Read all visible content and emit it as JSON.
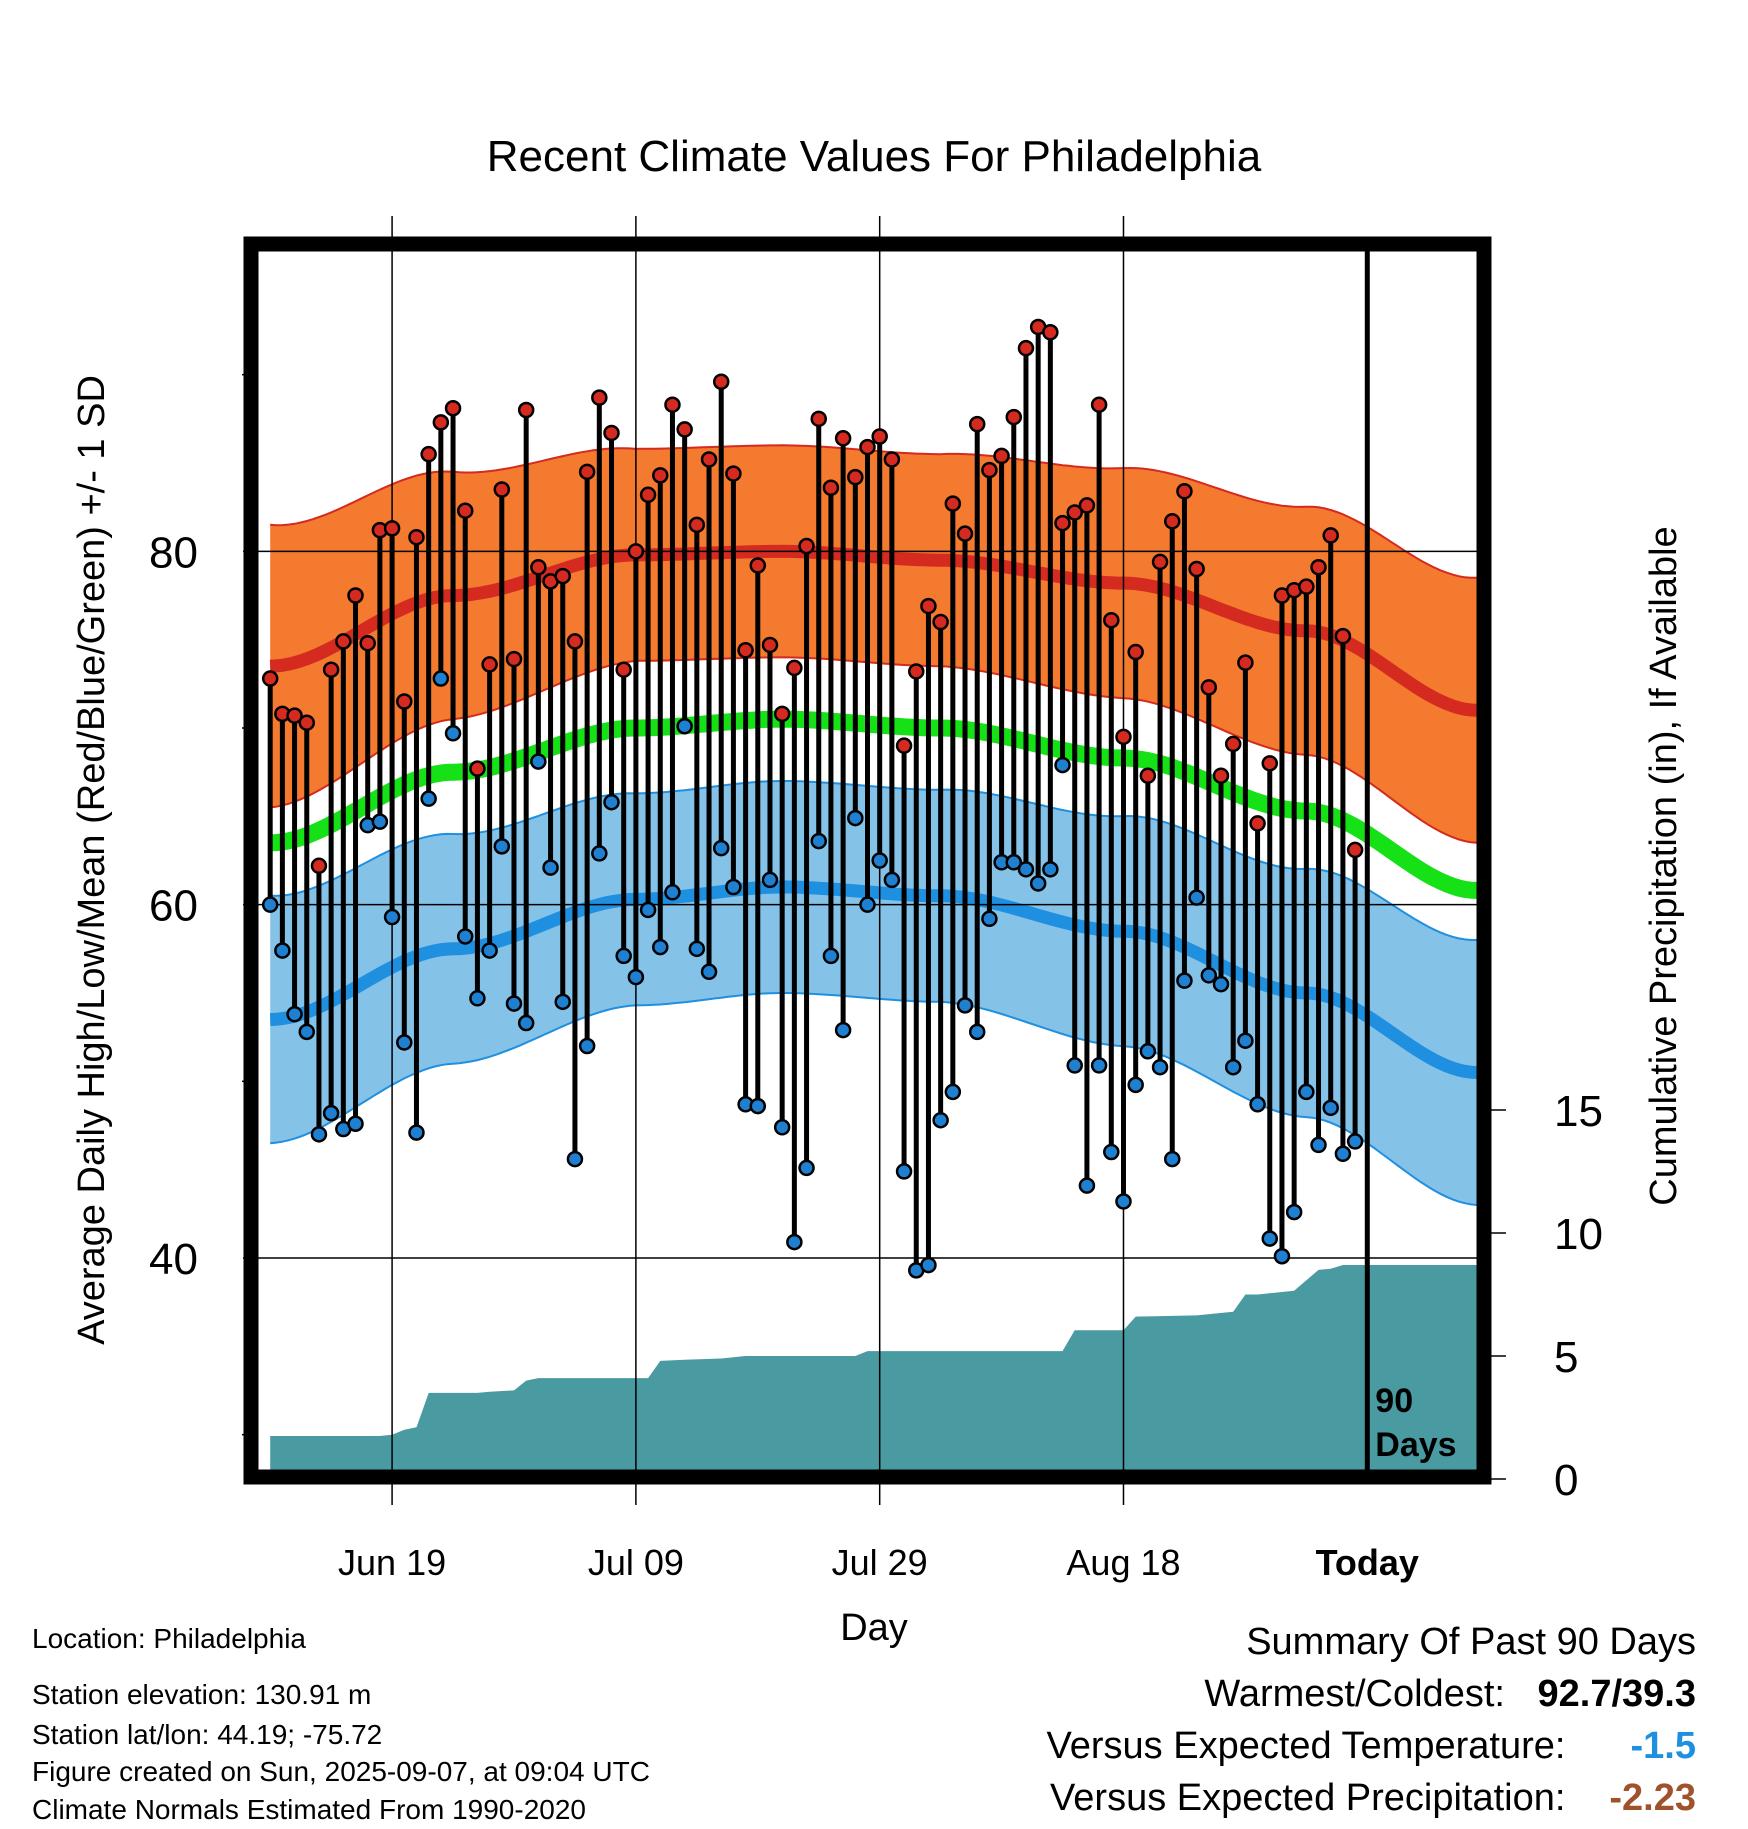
{
  "title": "Recent Climate Values For Philadelphia",
  "info": {
    "location": "Location: Philadelphia",
    "elevation": "Station elevation: 130.91 m",
    "latlon": "Station lat/lon: 44.19; -75.72",
    "created": "Figure created on Sun, 2025-09-07, at 09:04 UTC",
    "normals": "Climate Normals Estimated From 1990-2020"
  },
  "summary": {
    "heading": "Summary Of Past 90 Days",
    "warmest_coldest_label": "Warmest/Coldest:",
    "warmest_coldest_value": "92.7/39.3",
    "temp_label": "Versus Expected Temperature:",
    "temp_value": "-1.5",
    "temp_color": "#1f8fe0",
    "precip_label": "Versus Expected Precipitation:",
    "precip_value": "-2.23",
    "precip_color": "#a0522d"
  },
  "chart_data": {
    "type": "line",
    "title": "Recent Climate Values For Philadelphia",
    "xlabel": "Day",
    "ylabel_left": "Average Daily High/Low/Mean (Red/Blue/Green) +/- 1 SD",
    "ylabel_right": "Cumulative Precipitation (in), If Available",
    "x_ticks": [
      {
        "day": 10,
        "label": "Jun 19"
      },
      {
        "day": 30,
        "label": "Jul 09"
      },
      {
        "day": 50,
        "label": "Jul 29"
      },
      {
        "day": 70,
        "label": "Aug 18"
      },
      {
        "day": 90,
        "label": "Today"
      }
    ],
    "xlim": [
      -1,
      99
    ],
    "ylim_left": [
      28,
      97
    ],
    "ylim_right": [
      0,
      15
    ],
    "yticks_left": [
      40,
      60,
      80
    ],
    "yticks_right": [
      0,
      5,
      10,
      15
    ],
    "today_marker": {
      "day": 90,
      "label_line1": "90",
      "label_line2": "Days"
    },
    "colors": {
      "high_band": "#f37a2f",
      "high_edge": "#d42a1f",
      "high_mean": "#d42a1f",
      "low_band": "#85c2e8",
      "low_edge": "#1f8fe0",
      "low_mean": "#1f8fe0",
      "mean_line": "#16e016",
      "precip": "#4a9aa2",
      "high_dot": "#d42a1f",
      "low_dot": "#1f7fd0"
    },
    "normal_high": {
      "knots": [
        [
          0,
          73.5
        ],
        [
          15,
          77.5
        ],
        [
          30,
          79.8
        ],
        [
          42,
          80.0
        ],
        [
          55,
          79.5
        ],
        [
          70,
          78.2
        ],
        [
          85,
          75.5
        ],
        [
          99,
          71.0
        ]
      ],
      "sd": [
        [
          0,
          8.0
        ],
        [
          30,
          6.0
        ],
        [
          55,
          6.0
        ],
        [
          99,
          7.5
        ]
      ]
    },
    "normal_low": {
      "knots": [
        [
          0,
          53.5
        ],
        [
          15,
          57.5
        ],
        [
          30,
          60.3
        ],
        [
          42,
          61.0
        ],
        [
          55,
          60.5
        ],
        [
          70,
          58.5
        ],
        [
          85,
          55.0
        ],
        [
          99,
          50.5
        ]
      ],
      "sd": [
        [
          0,
          7.0
        ],
        [
          30,
          6.0
        ],
        [
          55,
          6.0
        ],
        [
          99,
          7.5
        ]
      ]
    },
    "normal_mean": {
      "knots": [
        [
          0,
          63.5
        ],
        [
          15,
          67.5
        ],
        [
          30,
          70.0
        ],
        [
          42,
          70.5
        ],
        [
          55,
          70.0
        ],
        [
          70,
          68.3
        ],
        [
          85,
          65.3
        ],
        [
          99,
          60.8
        ]
      ]
    },
    "highs": [
      72.8,
      70.8,
      70.7,
      70.3,
      62.2,
      73.3,
      74.9,
      77.5,
      74.8,
      81.2,
      81.3,
      71.5,
      80.8,
      85.5,
      87.3,
      88.1,
      82.3,
      67.7,
      73.6,
      83.5,
      73.9,
      88.0,
      79.1,
      78.3,
      78.6,
      74.9,
      84.5,
      88.7,
      86.7,
      73.3,
      80.0,
      83.2,
      84.3,
      88.3,
      86.9,
      81.5,
      85.2,
      89.6,
      84.4,
      74.4,
      79.2,
      74.7,
      70.8,
      73.4,
      80.3,
      87.5,
      83.6,
      86.4,
      84.2,
      85.9,
      86.5,
      85.2,
      69.0,
      73.2,
      76.9,
      76.0,
      82.7,
      81.0,
      87.2,
      84.6,
      85.4,
      87.6,
      91.5,
      92.7,
      92.4,
      81.6,
      82.2,
      82.6,
      88.3,
      76.1,
      69.5,
      74.3,
      67.3,
      79.4,
      81.7,
      83.4,
      79.0,
      72.3,
      67.3,
      69.1,
      73.7,
      64.6,
      68.0,
      77.5,
      77.8,
      78.0,
      79.1,
      80.9,
      75.2,
      63.1
    ],
    "lows": [
      60.0,
      57.4,
      53.8,
      52.8,
      47.0,
      48.2,
      47.3,
      47.6,
      64.5,
      64.7,
      59.3,
      52.2,
      47.1,
      66.0,
      72.8,
      69.7,
      58.2,
      54.7,
      57.4,
      63.3,
      54.4,
      53.3,
      68.1,
      62.1,
      54.5,
      45.6,
      52.0,
      62.9,
      65.8,
      57.1,
      55.9,
      59.7,
      57.6,
      60.7,
      70.1,
      57.5,
      56.2,
      63.2,
      61.0,
      48.7,
      48.6,
      61.4,
      47.4,
      40.9,
      45.1,
      63.6,
      57.1,
      52.9,
      64.9,
      60.0,
      62.5,
      61.4,
      44.9,
      39.3,
      39.6,
      47.8,
      49.4,
      54.3,
      52.8,
      59.2,
      62.4,
      62.4,
      62.0,
      61.2,
      62.0,
      67.9,
      50.9,
      44.1,
      50.9,
      46.0,
      43.2,
      49.8,
      51.7,
      50.8,
      45.6,
      55.7,
      60.4,
      56.0,
      55.5,
      50.8,
      52.3,
      48.7,
      41.1,
      40.1,
      42.6,
      49.4,
      46.4,
      48.5,
      45.9,
      46.6
    ],
    "precip_cumulative": [
      [
        0,
        1.75
      ],
      [
        9,
        1.75
      ],
      [
        10,
        1.8
      ],
      [
        11,
        2.0
      ],
      [
        12,
        2.1
      ],
      [
        13,
        3.5
      ],
      [
        17,
        3.5
      ],
      [
        18,
        3.55
      ],
      [
        20,
        3.6
      ],
      [
        21,
        4.0
      ],
      [
        22,
        4.1
      ],
      [
        31,
        4.1
      ],
      [
        32,
        4.8
      ],
      [
        34,
        4.85
      ],
      [
        37,
        4.9
      ],
      [
        39,
        5.0
      ],
      [
        48,
        5.0
      ],
      [
        49,
        5.2
      ],
      [
        51,
        5.2
      ],
      [
        65,
        5.2
      ],
      [
        66,
        6.05
      ],
      [
        70,
        6.05
      ],
      [
        71,
        6.6
      ],
      [
        76,
        6.65
      ],
      [
        79,
        6.8
      ],
      [
        80,
        7.5
      ],
      [
        81,
        7.5
      ],
      [
        84,
        7.65
      ],
      [
        86,
        8.5
      ],
      [
        87,
        8.55
      ],
      [
        88,
        8.7
      ],
      [
        99,
        8.7
      ]
    ]
  }
}
